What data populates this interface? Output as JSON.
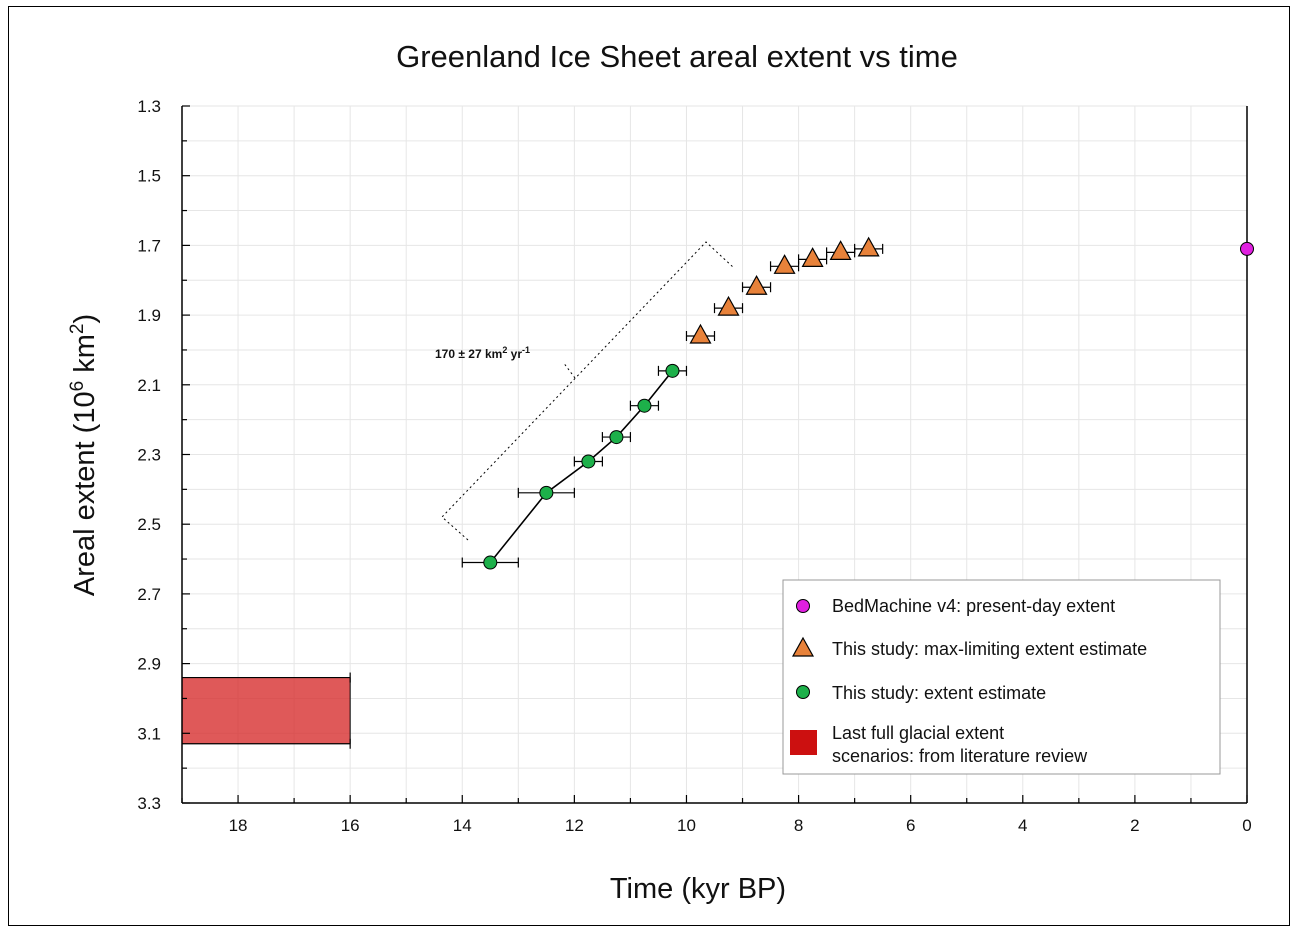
{
  "chart_data": {
    "type": "scatter",
    "title": "Greenland Ice Sheet areal extent vs time",
    "xlabel": "Time (kyr BP)",
    "ylabel": "Areal extent (10⁶ km²)",
    "ylabel_parts": {
      "pre": "Areal extent (10",
      "sup1": "6",
      "mid": " km",
      "sup2": "2",
      "post": ")"
    },
    "xlim": [
      19,
      0
    ],
    "ylim": [
      3.3,
      1.3
    ],
    "x_reversed": true,
    "y_inverted": true,
    "x_ticks": [
      18,
      16,
      14,
      12,
      10,
      8,
      6,
      4,
      2,
      0
    ],
    "y_ticks": [
      "1.3",
      "1.5",
      "1.7",
      "1.9",
      "2.1",
      "2.3",
      "2.5",
      "2.7",
      "2.9",
      "3.1",
      "3.3"
    ],
    "grid": true,
    "legend_position": "bottom-right",
    "series": [
      {
        "name": "BedMachine v4: present-day extent",
        "marker": "circle",
        "color": "#e020e0",
        "points": [
          {
            "x": 0,
            "y": 1.71
          }
        ]
      },
      {
        "name": "This study: max-limiting extent estimate",
        "marker": "triangle",
        "color": "#e8823a",
        "points": [
          {
            "x": 9.75,
            "y": 1.96,
            "xerr": 0.25
          },
          {
            "x": 9.25,
            "y": 1.88,
            "xerr": 0.25
          },
          {
            "x": 8.75,
            "y": 1.82,
            "xerr": 0.25
          },
          {
            "x": 8.25,
            "y": 1.76,
            "xerr": 0.25
          },
          {
            "x": 7.75,
            "y": 1.74,
            "xerr": 0.25
          },
          {
            "x": 7.25,
            "y": 1.72,
            "xerr": 0.25
          },
          {
            "x": 6.75,
            "y": 1.71,
            "xerr": 0.25
          }
        ]
      },
      {
        "name": "This study: extent estimate",
        "marker": "circle",
        "color": "#1db04a",
        "connected": true,
        "points": [
          {
            "x": 13.5,
            "y": 2.61,
            "xerr": 0.5
          },
          {
            "x": 12.5,
            "y": 2.41,
            "xerr": 0.5
          },
          {
            "x": 11.75,
            "y": 2.32,
            "xerr": 0.25
          },
          {
            "x": 11.25,
            "y": 2.25,
            "xerr": 0.25
          },
          {
            "x": 10.75,
            "y": 2.16,
            "xerr": 0.25
          },
          {
            "x": 10.25,
            "y": 2.06,
            "xerr": 0.25
          }
        ]
      },
      {
        "name": "Last full glacial extent scenarios: from literature review",
        "legend_lines": [
          "Last full glacial extent",
          "scenarios: from literature review"
        ],
        "marker": "rect",
        "color": "#cc1010",
        "rect": {
          "x0": 19,
          "x1": 16,
          "y0": 2.94,
          "y1": 3.13
        }
      }
    ],
    "annotation": {
      "text_pre": "170 ± 27 km",
      "sup1": "2",
      "text_mid": " yr",
      "sup2": "-1"
    }
  }
}
